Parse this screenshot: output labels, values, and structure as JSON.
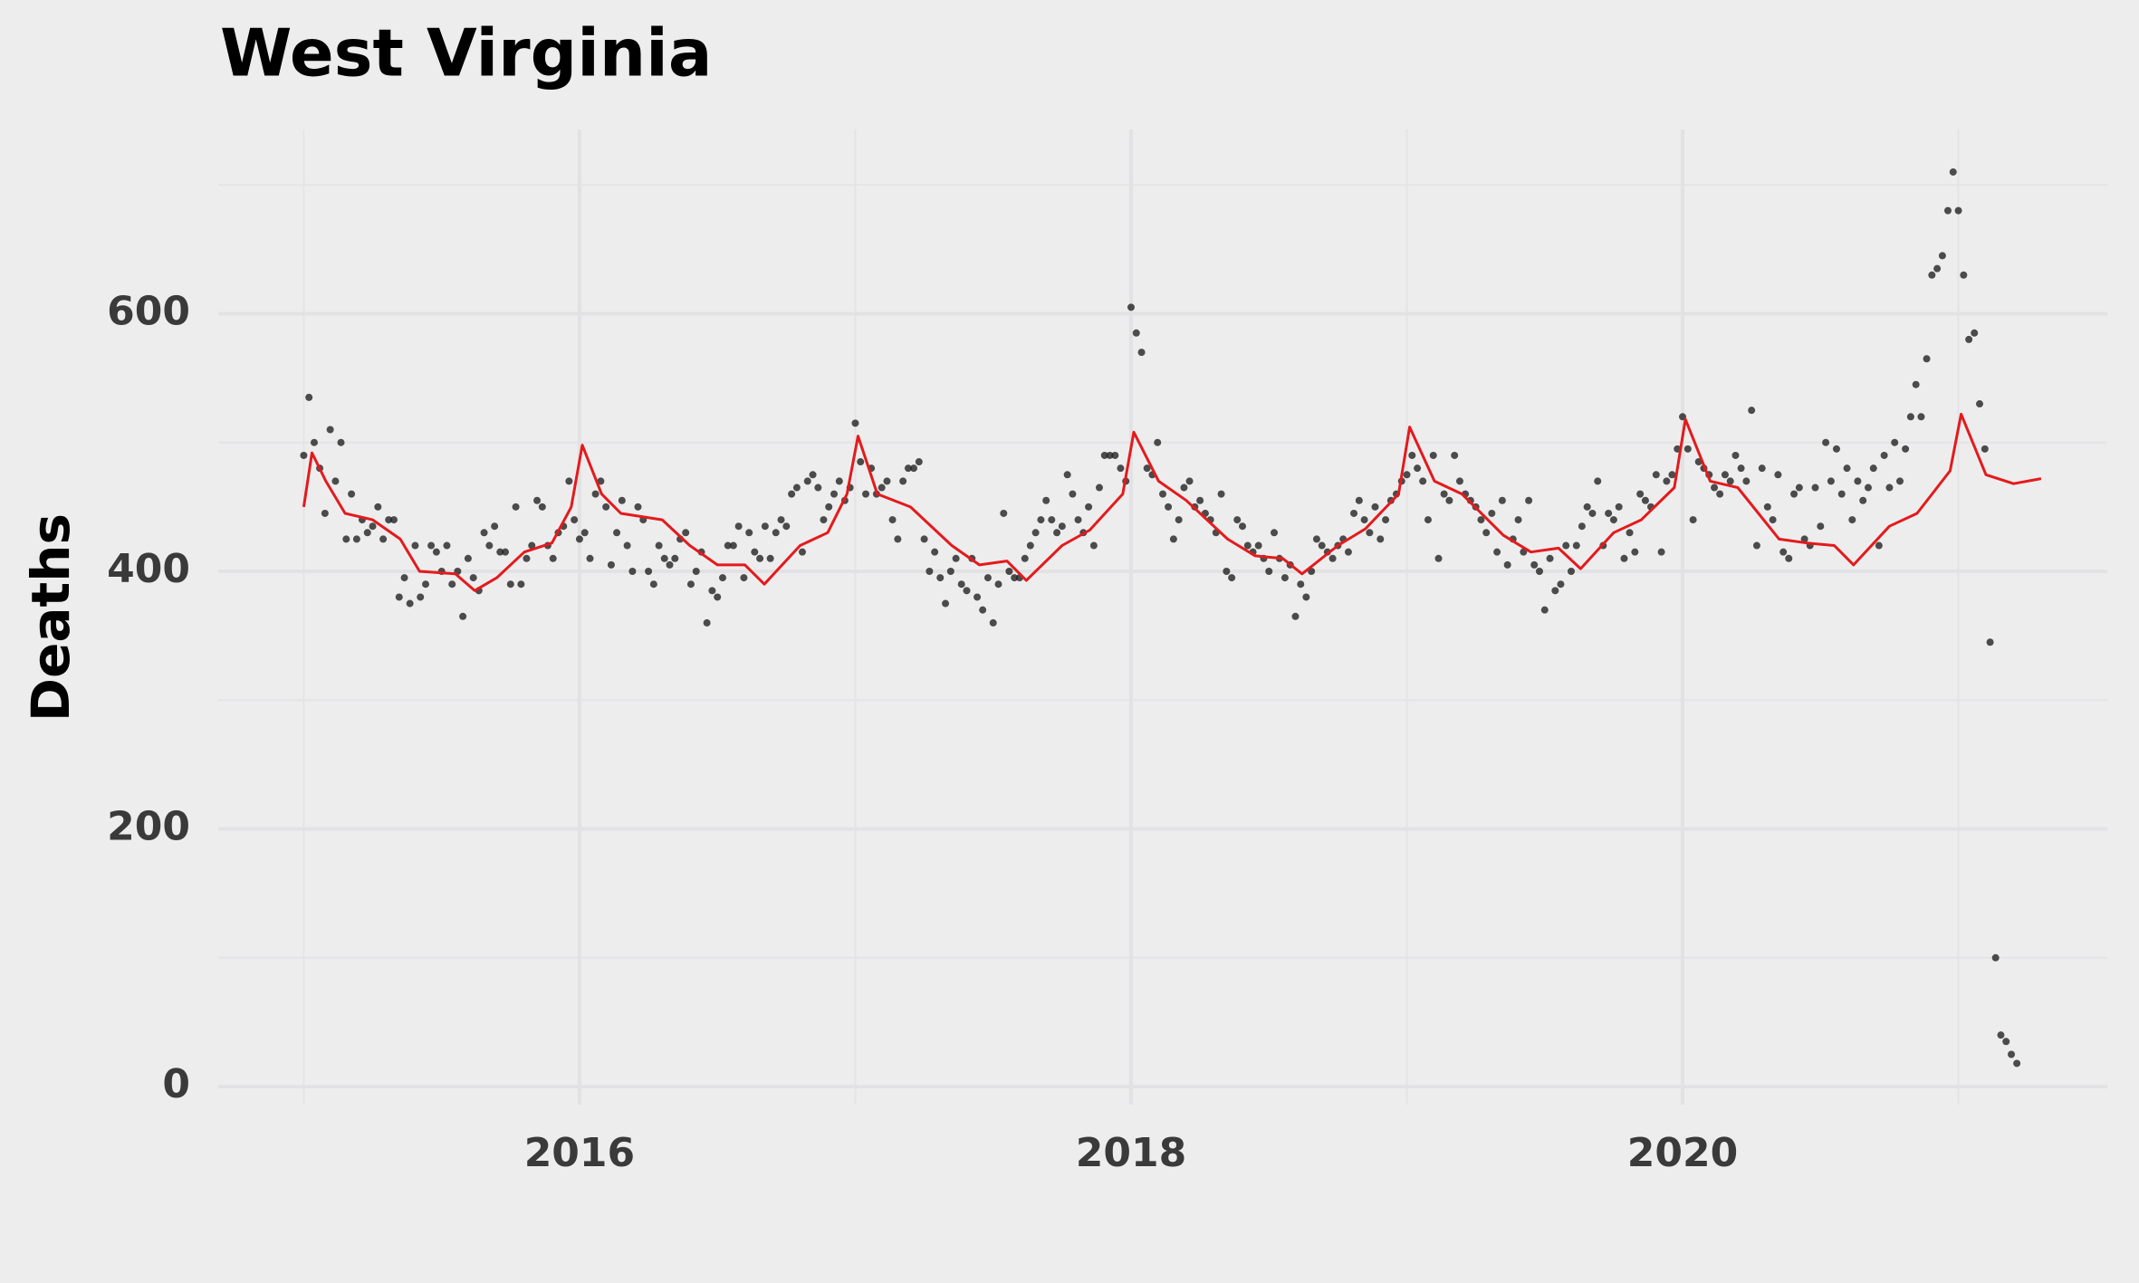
{
  "chart_data": {
    "type": "scatter",
    "title": "West Virginia",
    "y_label": "Deaths",
    "x": [
      2015,
      2015.019,
      2015.038,
      2015.058,
      2015.077,
      2015.096,
      2015.115,
      2015.135,
      2015.154,
      2015.173,
      2015.192,
      2015.212,
      2015.231,
      2015.25,
      2015.269,
      2015.288,
      2015.308,
      2015.327,
      2015.346,
      2015.365,
      2015.385,
      2015.404,
      2015.423,
      2015.442,
      2015.462,
      2015.481,
      2015.5,
      2015.519,
      2015.538,
      2015.558,
      2015.577,
      2015.596,
      2015.615,
      2015.635,
      2015.654,
      2015.673,
      2015.692,
      2015.712,
      2015.731,
      2015.75,
      2015.769,
      2015.788,
      2015.808,
      2015.827,
      2015.846,
      2015.865,
      2015.885,
      2015.904,
      2015.923,
      2015.942,
      2015.962,
      2015.981,
      2016,
      2016.019,
      2016.038,
      2016.058,
      2016.077,
      2016.096,
      2016.115,
      2016.135,
      2016.154,
      2016.173,
      2016.192,
      2016.212,
      2016.231,
      2016.25,
      2016.269,
      2016.288,
      2016.308,
      2016.327,
      2016.346,
      2016.365,
      2016.385,
      2016.404,
      2016.423,
      2016.442,
      2016.462,
      2016.481,
      2016.5,
      2016.519,
      2016.538,
      2016.558,
      2016.577,
      2016.596,
      2016.615,
      2016.635,
      2016.654,
      2016.673,
      2016.692,
      2016.712,
      2016.731,
      2016.75,
      2016.769,
      2016.788,
      2016.808,
      2016.827,
      2016.846,
      2016.865,
      2016.885,
      2016.904,
      2016.923,
      2016.942,
      2016.962,
      2016.981,
      2017,
      2017.019,
      2017.038,
      2017.058,
      2017.077,
      2017.096,
      2017.115,
      2017.135,
      2017.154,
      2017.173,
      2017.192,
      2017.212,
      2017.231,
      2017.25,
      2017.269,
      2017.288,
      2017.308,
      2017.327,
      2017.346,
      2017.365,
      2017.385,
      2017.404,
      2017.423,
      2017.442,
      2017.462,
      2017.481,
      2017.5,
      2017.519,
      2017.538,
      2017.558,
      2017.577,
      2017.596,
      2017.615,
      2017.635,
      2017.654,
      2017.673,
      2017.692,
      2017.712,
      2017.731,
      2017.75,
      2017.769,
      2017.788,
      2017.808,
      2017.827,
      2017.846,
      2017.865,
      2017.885,
      2017.904,
      2017.923,
      2017.942,
      2017.962,
      2017.981,
      2018,
      2018.019,
      2018.038,
      2018.058,
      2018.077,
      2018.096,
      2018.115,
      2018.135,
      2018.154,
      2018.173,
      2018.192,
      2018.212,
      2018.231,
      2018.25,
      2018.269,
      2018.288,
      2018.308,
      2018.327,
      2018.346,
      2018.365,
      2018.385,
      2018.404,
      2018.423,
      2018.442,
      2018.462,
      2018.481,
      2018.5,
      2018.519,
      2018.538,
      2018.558,
      2018.577,
      2018.596,
      2018.615,
      2018.635,
      2018.654,
      2018.673,
      2018.692,
      2018.712,
      2018.731,
      2018.75,
      2018.769,
      2018.788,
      2018.808,
      2018.827,
      2018.846,
      2018.865,
      2018.885,
      2018.904,
      2018.923,
      2018.942,
      2018.962,
      2018.981,
      2019,
      2019.019,
      2019.038,
      2019.058,
      2019.077,
      2019.096,
      2019.115,
      2019.135,
      2019.154,
      2019.173,
      2019.192,
      2019.212,
      2019.231,
      2019.25,
      2019.269,
      2019.288,
      2019.308,
      2019.327,
      2019.346,
      2019.365,
      2019.385,
      2019.404,
      2019.423,
      2019.442,
      2019.462,
      2019.481,
      2019.5,
      2019.519,
      2019.538,
      2019.558,
      2019.577,
      2019.596,
      2019.615,
      2019.635,
      2019.654,
      2019.673,
      2019.692,
      2019.712,
      2019.731,
      2019.75,
      2019.769,
      2019.788,
      2019.808,
      2019.827,
      2019.846,
      2019.865,
      2019.885,
      2019.904,
      2019.923,
      2019.942,
      2019.962,
      2019.981,
      2020,
      2020.019,
      2020.038,
      2020.058,
      2020.077,
      2020.096,
      2020.115,
      2020.135,
      2020.154,
      2020.173,
      2020.192,
      2020.212,
      2020.231,
      2020.25,
      2020.269,
      2020.288,
      2020.308,
      2020.327,
      2020.346,
      2020.365,
      2020.385,
      2020.404,
      2020.423,
      2020.442,
      2020.462,
      2020.481,
      2020.5,
      2020.519,
      2020.538,
      2020.558,
      2020.577,
      2020.596,
      2020.615,
      2020.635,
      2020.654,
      2020.673,
      2020.692,
      2020.712,
      2020.731,
      2020.75,
      2020.769,
      2020.788,
      2020.808,
      2020.827,
      2020.846,
      2020.865,
      2020.885,
      2020.904,
      2020.923,
      2020.942,
      2020.962,
      2020.981,
      2021,
      2021.019,
      2021.038,
      2021.058,
      2021.077,
      2021.096,
      2021.115,
      2021.135,
      2021.154,
      2021.173,
      2021.192,
      2021.212
    ],
    "values": [
      490,
      535,
      500,
      480,
      445,
      510,
      470,
      500,
      425,
      460,
      425,
      440,
      430,
      435,
      450,
      425,
      440,
      440,
      380,
      395,
      375,
      420,
      380,
      390,
      420,
      415,
      400,
      420,
      390,
      400,
      365,
      410,
      395,
      385,
      430,
      420,
      435,
      415,
      415,
      390,
      450,
      390,
      410,
      420,
      455,
      450,
      420,
      410,
      430,
      435,
      470,
      440,
      425,
      430,
      410,
      460,
      470,
      450,
      405,
      430,
      455,
      420,
      400,
      450,
      440,
      400,
      390,
      420,
      410,
      405,
      410,
      425,
      430,
      390,
      400,
      415,
      360,
      385,
      380,
      395,
      420,
      420,
      435,
      395,
      430,
      415,
      410,
      435,
      410,
      430,
      440,
      435,
      460,
      465,
      415,
      470,
      475,
      465,
      440,
      450,
      460,
      470,
      455,
      465,
      515,
      485,
      460,
      480,
      460,
      465,
      470,
      440,
      425,
      470,
      480,
      480,
      485,
      425,
      400,
      415,
      395,
      375,
      400,
      410,
      390,
      385,
      410,
      380,
      370,
      395,
      360,
      390,
      445,
      400,
      395,
      395,
      410,
      420,
      430,
      440,
      455,
      440,
      430,
      435,
      475,
      460,
      440,
      430,
      450,
      420,
      465,
      490,
      490,
      490,
      480,
      470,
      605,
      585,
      570,
      480,
      475,
      500,
      460,
      450,
      425,
      440,
      465,
      470,
      450,
      455,
      445,
      440,
      430,
      460,
      400,
      395,
      440,
      435,
      420,
      415,
      420,
      410,
      400,
      430,
      410,
      395,
      405,
      365,
      390,
      380,
      400,
      425,
      420,
      415,
      410,
      420,
      425,
      415,
      445,
      455,
      440,
      430,
      450,
      425,
      440,
      455,
      460,
      470,
      475,
      490,
      480,
      470,
      440,
      490,
      410,
      460,
      455,
      490,
      470,
      460,
      455,
      450,
      440,
      430,
      445,
      415,
      455,
      405,
      425,
      440,
      415,
      455,
      405,
      400,
      370,
      410,
      385,
      390,
      420,
      400,
      420,
      435,
      450,
      445,
      470,
      420,
      445,
      440,
      450,
      410,
      430,
      415,
      460,
      455,
      450,
      475,
      415,
      470,
      475,
      495,
      520,
      495,
      440,
      485,
      480,
      475,
      465,
      460,
      475,
      470,
      490,
      480,
      470,
      525,
      420,
      480,
      450,
      440,
      475,
      415,
      410,
      460,
      465,
      425,
      420,
      465,
      435,
      500,
      470,
      495,
      460,
      480,
      440,
      470,
      455,
      465,
      480,
      420,
      490,
      465,
      500,
      470,
      495,
      520,
      545,
      520,
      565,
      630,
      635,
      645,
      680,
      710,
      680,
      630,
      580,
      585,
      530,
      495,
      345,
      100,
      40,
      35,
      25,
      18
    ],
    "color": "#222222",
    "trend_x": [
      2015,
      2015.03,
      2015.08,
      2015.15,
      2015.25,
      2015.35,
      2015.42,
      2015.55,
      2015.62,
      2015.7,
      2015.8,
      2015.9,
      2015.97,
      2016.01,
      2016.08,
      2016.15,
      2016.3,
      2016.4,
      2016.5,
      2016.6,
      2016.67,
      2016.8,
      2016.9,
      2016.97,
      2017.01,
      2017.08,
      2017.2,
      2017.35,
      2017.45,
      2017.55,
      2017.62,
      2017.75,
      2017.85,
      2017.97,
      2018.01,
      2018.1,
      2018.2,
      2018.35,
      2018.45,
      2018.55,
      2018.62,
      2018.75,
      2018.85,
      2018.97,
      2019.01,
      2019.1,
      2019.2,
      2019.35,
      2019.45,
      2019.55,
      2019.63,
      2019.75,
      2019.85,
      2019.97,
      2020.01,
      2020.1,
      2020.2,
      2020.35,
      2020.45,
      2020.55,
      2020.62,
      2020.75,
      2020.85,
      2020.97,
      2021.01,
      2021.1,
      2021.2,
      2021.3
    ],
    "trend_values": [
      450,
      492,
      470,
      445,
      440,
      425,
      400,
      398,
      385,
      395,
      415,
      422,
      450,
      498,
      460,
      445,
      440,
      420,
      405,
      405,
      390,
      420,
      430,
      460,
      505,
      460,
      450,
      420,
      405,
      408,
      393,
      420,
      432,
      460,
      508,
      470,
      455,
      425,
      412,
      410,
      398,
      420,
      433,
      460,
      512,
      470,
      460,
      428,
      415,
      418,
      402,
      430,
      440,
      465,
      518,
      470,
      465,
      425,
      422,
      420,
      405,
      435,
      445,
      478,
      522,
      475,
      468,
      472
    ],
    "trend_color": "#e41a1c",
    "xlim": [
      2014.69,
      2021.54
    ],
    "ylim": [
      -14,
      743
    ],
    "xticks": [
      2016,
      2018,
      2020
    ],
    "yticks": [
      0,
      200,
      400,
      600
    ],
    "minor_xticks": [
      2015,
      2017,
      2019,
      2021
    ],
    "minor_yticks": [
      100,
      300,
      500,
      700
    ],
    "grid": true
  }
}
